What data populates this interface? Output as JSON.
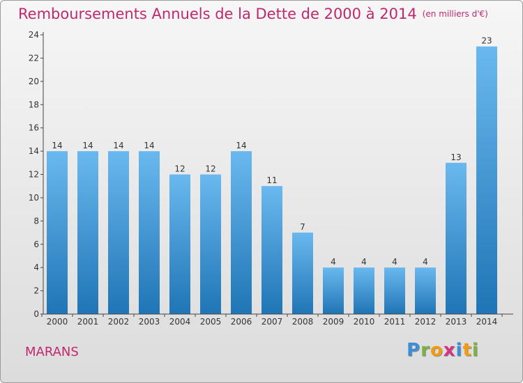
{
  "title": "Remboursements Annuels de la Dette de 2000 à 2014",
  "subtitle": "(en milliers d'€)",
  "place": "MARANS",
  "logo": {
    "text": "Proxiti",
    "colors": [
      "#3a8fd8",
      "#7cb342",
      "#f39c12",
      "#d63384",
      "#3a8fd8",
      "#f39c12",
      "#7cb342"
    ]
  },
  "colors": {
    "bar_top": "#6ab8ef",
    "bar_bottom": "#1f75b5",
    "title": "#c0286e",
    "axis": "#444444"
  },
  "chart_data": {
    "type": "bar",
    "categories": [
      "2000",
      "2001",
      "2002",
      "2003",
      "2004",
      "2005",
      "2006",
      "2007",
      "2008",
      "2009",
      "2010",
      "2011",
      "2012",
      "2013",
      "2014"
    ],
    "values": [
      14,
      14,
      14,
      14,
      12,
      12,
      14,
      11,
      7,
      4,
      4,
      4,
      4,
      13,
      23
    ],
    "data_labels": [
      "14",
      "14",
      "14",
      "14",
      "12",
      "12",
      "14",
      "11",
      "7",
      "4",
      "4",
      "4",
      "4",
      "13",
      "23"
    ],
    "y_ticks": [
      0,
      2,
      4,
      6,
      8,
      10,
      12,
      14,
      16,
      18,
      20,
      22,
      24
    ],
    "ylim": [
      0,
      24
    ],
    "grid": false
  }
}
